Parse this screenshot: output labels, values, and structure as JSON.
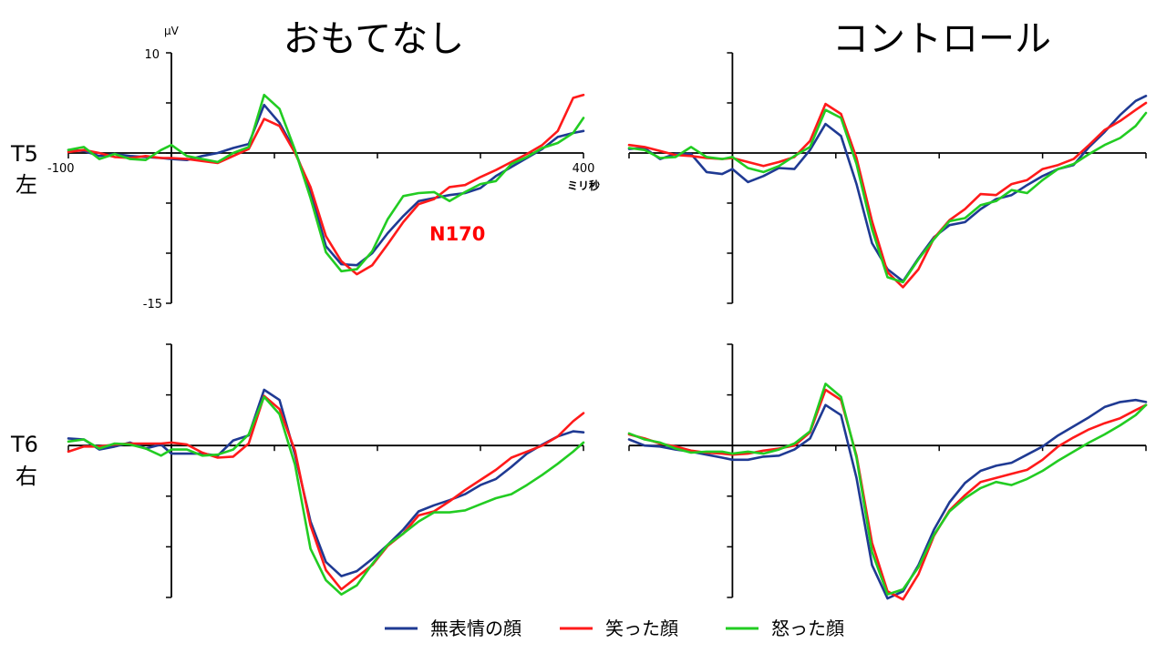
{
  "titles": {
    "left": "おもてなし",
    "right": "コントロール"
  },
  "rows": [
    {
      "code": "T5",
      "side": "左"
    },
    {
      "code": "T6",
      "side": "右"
    }
  ],
  "axis": {
    "y_top_label": "10",
    "y_bottom_label": "-15",
    "y_unit": "µV",
    "x_left_label": "-100",
    "x_right_label": "400",
    "x_unit": "ミリ秒"
  },
  "annotation": {
    "text": "N170",
    "color": "#ff0000"
  },
  "colors": {
    "neutral": "#1f3a93",
    "happy": "#ff1a1a",
    "angry": "#22cc22"
  },
  "chart_data": {
    "type": "line",
    "xlim": [
      -100,
      400
    ],
    "ylim": [
      -15,
      10
    ],
    "panels": [
      {
        "name": "T5-おもてなし",
        "series": [
          {
            "name": "無表情の顔",
            "color": "#1f3a93",
            "x": [
              -100,
              -85,
              -70,
              -55,
              -40,
              -25,
              -10,
              0,
              15,
              30,
              45,
              60,
              75,
              90,
              105,
              120,
              135,
              150,
              165,
              180,
              195,
              210,
              225,
              240,
              255,
              270,
              285,
              300,
              315,
              330,
              345,
              360,
              375,
              390,
              400
            ],
            "y": [
              0.3,
              0.2,
              -0.3,
              -0.1,
              -0.3,
              -0.4,
              -0.5,
              -0.6,
              -0.7,
              -0.3,
              0.0,
              0.5,
              0.9,
              4.8,
              3.0,
              0.2,
              -3.8,
              -9.3,
              -11.1,
              -11.2,
              -10.0,
              -8.0,
              -6.3,
              -4.8,
              -4.5,
              -4.2,
              -4.0,
              -3.5,
              -2.3,
              -1.4,
              -0.5,
              0.4,
              1.6,
              2.0,
              2.2
            ]
          },
          {
            "name": "笑った顔",
            "color": "#ff1a1a",
            "x": [
              -100,
              -85,
              -70,
              -55,
              -40,
              -25,
              -10,
              0,
              15,
              30,
              45,
              60,
              75,
              90,
              105,
              120,
              135,
              150,
              165,
              180,
              195,
              210,
              225,
              240,
              255,
              270,
              285,
              300,
              315,
              330,
              345,
              360,
              375,
              390,
              400
            ],
            "y": [
              0.1,
              0.3,
              0.0,
              -0.4,
              -0.5,
              -0.3,
              -0.5,
              -0.5,
              -0.6,
              -0.8,
              -1.0,
              -0.3,
              0.4,
              3.4,
              2.7,
              0.0,
              -3.4,
              -8.3,
              -10.8,
              -12.1,
              -11.2,
              -9.1,
              -6.9,
              -5.1,
              -4.6,
              -3.4,
              -3.2,
              -2.4,
              -1.7,
              -0.9,
              -0.1,
              0.8,
              2.2,
              5.5,
              5.8
            ]
          },
          {
            "name": "怒った顔",
            "color": "#22cc22",
            "x": [
              -100,
              -85,
              -70,
              -55,
              -40,
              -25,
              -10,
              0,
              15,
              30,
              45,
              60,
              75,
              90,
              105,
              120,
              135,
              150,
              165,
              180,
              195,
              210,
              225,
              240,
              255,
              270,
              285,
              300,
              315,
              330,
              345,
              360,
              375,
              390,
              400
            ],
            "y": [
              0.3,
              0.6,
              -0.6,
              -0.1,
              -0.6,
              -0.7,
              0.3,
              0.8,
              -0.3,
              -0.6,
              -0.9,
              0.0,
              0.6,
              5.8,
              4.4,
              0.3,
              -4.5,
              -9.9,
              -11.8,
              -11.6,
              -9.8,
              -6.6,
              -4.3,
              -4.0,
              -3.9,
              -4.8,
              -3.9,
              -3.1,
              -2.8,
              -1.1,
              -0.4,
              0.5,
              1.0,
              2.0,
              3.5
            ]
          }
        ]
      },
      {
        "name": "T5-コントロール",
        "series": [
          {
            "name": "無表情の顔",
            "color": "#1f3a93",
            "x": [
              -100,
              -85,
              -70,
              -55,
              -40,
              -25,
              -10,
              0,
              15,
              30,
              45,
              60,
              75,
              90,
              105,
              120,
              135,
              150,
              165,
              180,
              195,
              210,
              225,
              240,
              255,
              270,
              285,
              300,
              315,
              330,
              345,
              360,
              375,
              390,
              400
            ],
            "y": [
              0.4,
              0.5,
              -0.6,
              -0.1,
              -0.1,
              -1.9,
              -2.1,
              -1.6,
              -2.9,
              -2.3,
              -1.5,
              -1.6,
              0.3,
              2.9,
              1.7,
              -3.1,
              -9.0,
              -11.6,
              -12.8,
              -10.5,
              -8.4,
              -7.2,
              -6.9,
              -5.6,
              -4.6,
              -4.2,
              -3.2,
              -2.3,
              -1.6,
              -1.2,
              0.6,
              2.1,
              3.8,
              5.2,
              5.7
            ]
          },
          {
            "name": "笑った顔",
            "color": "#ff1a1a",
            "x": [
              -100,
              -85,
              -70,
              -55,
              -40,
              -25,
              -10,
              0,
              15,
              30,
              45,
              60,
              75,
              90,
              105,
              120,
              135,
              150,
              165,
              180,
              195,
              210,
              225,
              240,
              255,
              270,
              285,
              300,
              315,
              330,
              345,
              360,
              375,
              390,
              400
            ],
            "y": [
              0.8,
              0.6,
              0.2,
              -0.2,
              -0.3,
              -0.5,
              -0.6,
              -0.5,
              -0.9,
              -1.3,
              -0.9,
              -0.4,
              1.2,
              4.9,
              3.9,
              -0.5,
              -6.8,
              -11.9,
              -13.4,
              -11.6,
              -8.5,
              -6.7,
              -5.6,
              -4.1,
              -4.2,
              -3.1,
              -2.7,
              -1.6,
              -1.2,
              -0.6,
              0.8,
              2.3,
              3.2,
              4.3,
              5.0
            ]
          },
          {
            "name": "怒った顔",
            "color": "#22cc22",
            "x": [
              -100,
              -85,
              -70,
              -55,
              -40,
              -25,
              -10,
              0,
              15,
              30,
              45,
              60,
              75,
              90,
              105,
              120,
              135,
              150,
              165,
              180,
              195,
              210,
              225,
              240,
              255,
              270,
              285,
              300,
              315,
              330,
              345,
              360,
              375,
              390,
              400
            ],
            "y": [
              0.5,
              0.3,
              -0.5,
              -0.4,
              0.6,
              -0.4,
              -0.6,
              -0.4,
              -1.5,
              -1.9,
              -1.3,
              -0.3,
              0.6,
              4.3,
              3.5,
              -1.1,
              -7.6,
              -12.4,
              -12.9,
              -10.6,
              -8.6,
              -6.8,
              -6.5,
              -5.2,
              -4.8,
              -3.7,
              -4.0,
              -2.7,
              -1.6,
              -1.1,
              -0.1,
              0.8,
              1.5,
              2.7,
              4.0
            ]
          }
        ]
      },
      {
        "name": "T6-おもてなし",
        "series": [
          {
            "name": "無表情の顔",
            "color": "#1f3a93",
            "x": [
              -100,
              -85,
              -70,
              -55,
              -40,
              -25,
              -10,
              0,
              15,
              30,
              45,
              60,
              75,
              90,
              105,
              120,
              135,
              150,
              165,
              180,
              195,
              210,
              225,
              240,
              255,
              270,
              285,
              300,
              315,
              330,
              345,
              360,
              375,
              390,
              400
            ],
            "y": [
              0.7,
              0.6,
              -0.4,
              -0.1,
              0.3,
              -0.3,
              0.1,
              -0.8,
              -0.8,
              -0.8,
              -1.0,
              0.5,
              1.0,
              5.5,
              4.5,
              -0.9,
              -7.5,
              -11.5,
              -12.9,
              -12.4,
              -11.2,
              -9.8,
              -8.3,
              -6.5,
              -5.9,
              -5.4,
              -4.8,
              -3.9,
              -3.3,
              -2.1,
              -0.8,
              0.1,
              0.9,
              1.4,
              1.3
            ]
          },
          {
            "name": "笑った顔",
            "color": "#ff1a1a",
            "x": [
              -100,
              -85,
              -70,
              -55,
              -40,
              -25,
              -10,
              0,
              15,
              30,
              45,
              60,
              75,
              90,
              105,
              120,
              135,
              150,
              165,
              180,
              195,
              210,
              225,
              240,
              255,
              270,
              285,
              300,
              315,
              330,
              345,
              360,
              375,
              390,
              400
            ],
            "y": [
              -0.6,
              -0.1,
              -0.1,
              0.1,
              0.2,
              0.2,
              0.2,
              0.3,
              0.1,
              -0.7,
              -1.2,
              -1.1,
              0.2,
              4.9,
              3.6,
              -0.5,
              -7.9,
              -12.3,
              -14.2,
              -13.0,
              -11.8,
              -9.9,
              -8.7,
              -6.9,
              -6.5,
              -5.5,
              -4.4,
              -3.4,
              -2.4,
              -1.2,
              -0.6,
              0.0,
              0.9,
              2.4,
              3.2
            ]
          },
          {
            "name": "怒った顔",
            "color": "#22cc22",
            "x": [
              -100,
              -85,
              -70,
              -55,
              -40,
              -25,
              -10,
              0,
              15,
              30,
              45,
              60,
              75,
              90,
              105,
              120,
              135,
              150,
              165,
              180,
              195,
              210,
              225,
              240,
              255,
              270,
              285,
              300,
              315,
              330,
              345,
              360,
              375,
              390,
              400
            ],
            "y": [
              0.4,
              0.6,
              -0.3,
              0.2,
              0.1,
              -0.3,
              -1.0,
              -0.4,
              -0.4,
              -1.0,
              -0.9,
              -0.4,
              1.1,
              4.8,
              3.1,
              -1.9,
              -10.2,
              -13.3,
              -14.7,
              -13.8,
              -11.7,
              -9.8,
              -8.7,
              -7.5,
              -6.6,
              -6.6,
              -6.4,
              -5.8,
              -5.2,
              -4.8,
              -3.9,
              -2.9,
              -1.8,
              -0.6,
              0.3
            ]
          }
        ]
      },
      {
        "name": "T6-コントロール",
        "series": [
          {
            "name": "無表情の顔",
            "color": "#1f3a93",
            "x": [
              -100,
              -85,
              -70,
              -55,
              -40,
              -25,
              -10,
              0,
              15,
              30,
              45,
              60,
              75,
              90,
              105,
              120,
              135,
              150,
              165,
              180,
              195,
              210,
              225,
              240,
              255,
              270,
              285,
              300,
              315,
              330,
              345,
              360,
              375,
              390,
              400
            ],
            "y": [
              0.6,
              0.0,
              -0.1,
              -0.4,
              -0.6,
              -0.9,
              -1.2,
              -1.4,
              -1.4,
              -1.1,
              -1.0,
              -0.4,
              0.7,
              4.0,
              3.0,
              -3.2,
              -11.8,
              -15.1,
              -14.4,
              -11.8,
              -8.3,
              -5.6,
              -3.7,
              -2.5,
              -2.0,
              -1.7,
              -0.9,
              -0.1,
              1.0,
              1.9,
              2.8,
              3.8,
              4.3,
              4.5,
              4.3
            ]
          },
          {
            "name": "笑った顔",
            "color": "#ff1a1a",
            "x": [
              -100,
              -85,
              -70,
              -55,
              -40,
              -25,
              -10,
              0,
              15,
              30,
              45,
              60,
              75,
              90,
              105,
              120,
              135,
              150,
              165,
              180,
              195,
              210,
              225,
              240,
              255,
              270,
              285,
              300,
              315,
              330,
              345,
              360,
              375,
              390,
              400
            ],
            "y": [
              1.1,
              0.7,
              0.2,
              -0.1,
              -0.5,
              -0.7,
              -0.8,
              -0.9,
              -0.8,
              -0.5,
              -0.3,
              0.0,
              1.3,
              5.5,
              4.5,
              -1.0,
              -9.6,
              -14.4,
              -15.2,
              -12.7,
              -8.9,
              -6.4,
              -4.9,
              -3.6,
              -3.2,
              -2.8,
              -2.4,
              -1.4,
              -0.1,
              0.8,
              1.6,
              2.2,
              2.7,
              3.5,
              4.0
            ]
          },
          {
            "name": "怒った顔",
            "color": "#22cc22",
            "x": [
              -100,
              -85,
              -70,
              -55,
              -40,
              -25,
              -10,
              0,
              15,
              30,
              45,
              60,
              75,
              90,
              105,
              120,
              135,
              150,
              165,
              180,
              195,
              210,
              225,
              240,
              255,
              270,
              285,
              300,
              315,
              330,
              345,
              360,
              375,
              390,
              400
            ],
            "y": [
              1.2,
              0.6,
              0.3,
              -0.3,
              -0.7,
              -0.6,
              -0.6,
              -0.8,
              -0.6,
              -0.8,
              -0.4,
              0.2,
              1.4,
              6.1,
              4.8,
              -1.2,
              -10.5,
              -14.7,
              -14.2,
              -12.0,
              -8.8,
              -6.5,
              -5.2,
              -4.2,
              -3.6,
              -3.9,
              -3.3,
              -2.5,
              -1.5,
              -0.6,
              0.3,
              1.1,
              2.0,
              3.0,
              4.0
            ]
          }
        ]
      }
    ]
  }
}
